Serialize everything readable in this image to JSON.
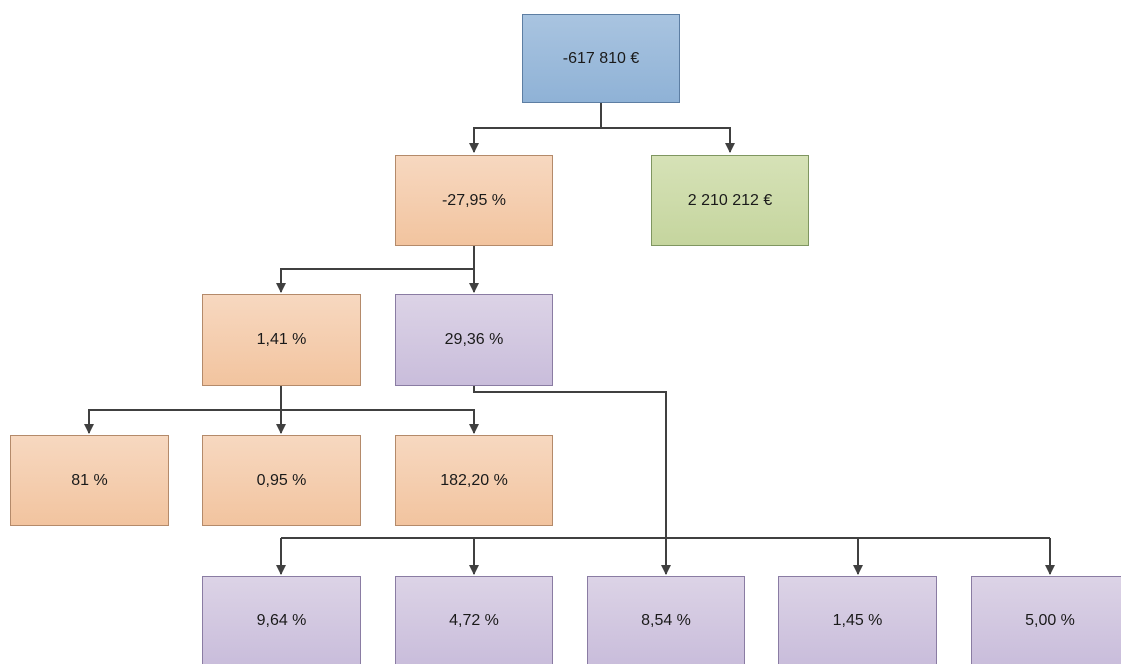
{
  "nodes": {
    "root": "-617 810 €",
    "l2_left": "-27,95 %",
    "l2_right": "2 210 212 €",
    "l3_left": "1,41 %",
    "l3_right": "29,36 %",
    "l4_a": "81 %",
    "l4_b": "0,95 %",
    "l4_c": "182,20 %",
    "l5_a": "9,64 %",
    "l5_b": "4,72 %",
    "l5_c": "8,54 %",
    "l5_d": "1,45 %",
    "l5_e": "5,00 %"
  },
  "colors": {
    "blue": "#9dbbdc",
    "green": "#cddaab",
    "orange": "#f4cdae",
    "purple": "#d1c7e0",
    "connector": "#404040"
  }
}
